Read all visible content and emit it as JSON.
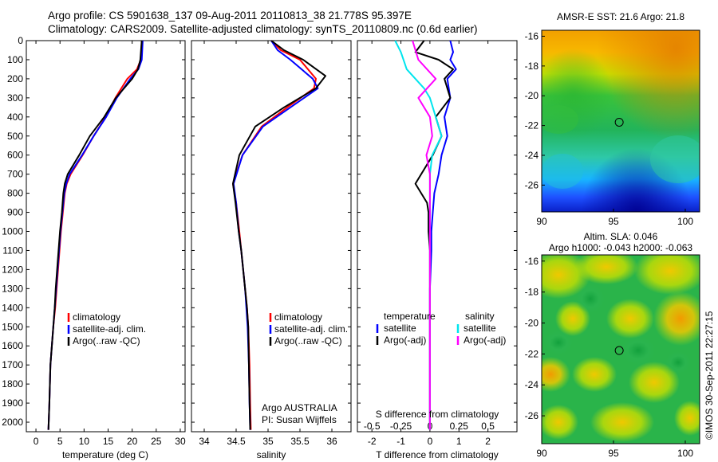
{
  "header": {
    "title_line1": "Argo profile: CS 5901638_137 09-Aug-2011 20110813_38 21.778S 95.397E",
    "title_line2": "Climatology: CARS2009. Satellite-adjusted climatology: synTS_20110809.nc (0.6d earlier)"
  },
  "footer": {
    "stamp": "©IMOS 30-Sep-2011 22:27:15"
  },
  "colors": {
    "climatology": "#ff0000",
    "satellite": "#0000ff",
    "argo": "#000000",
    "sal_satellite": "#00e5ee",
    "sal_argo": "#ff00ff",
    "marker": "#000000"
  },
  "chart_data": [
    {
      "type": "line",
      "id": "temperature",
      "xlabel": "temperature (deg C)",
      "xlim": [
        -2,
        31
      ],
      "ylim": [
        2050,
        0
      ],
      "xticks": [
        0,
        5,
        10,
        15,
        20,
        25,
        30
      ],
      "xtick_labels": [
        "0",
        "5",
        "10",
        "15",
        "20",
        "25",
        "30"
      ],
      "yticks": [
        0,
        100,
        200,
        300,
        400,
        500,
        600,
        700,
        800,
        900,
        1000,
        1100,
        1200,
        1300,
        1400,
        1500,
        1600,
        1700,
        1800,
        1900,
        2000
      ],
      "ytick_labels": [
        "0",
        "100",
        "200",
        "300",
        "400",
        "500",
        "600",
        "700",
        "800",
        "900",
        "1000",
        "1100",
        "1200",
        "1300",
        "1400",
        "1500",
        "1600",
        "1700",
        "1800",
        "1900",
        "2000"
      ],
      "legend": [
        "climatology",
        "satellite-adj. clim.",
        "Argo(..raw -QC)"
      ],
      "series": [
        {
          "name": "climatology",
          "color": "#ff0000",
          "x": [
            22.0,
            21.8,
            21.0,
            19.0,
            16.5,
            14.5,
            12.0,
            9.7,
            7.2,
            6.4,
            6.0,
            5.6,
            5.2,
            4.9,
            4.6,
            4.3,
            4.0,
            3.6,
            3.3,
            3.0,
            2.8,
            2.6
          ],
          "y": [
            0,
            100,
            150,
            200,
            300,
            400,
            500,
            600,
            700,
            750,
            800,
            900,
            1000,
            1100,
            1200,
            1300,
            1400,
            1500,
            1600,
            1700,
            1900,
            2040
          ]
        },
        {
          "name": "satellite-adj. clim.",
          "color": "#0000ff",
          "x": [
            22.2,
            22.0,
            21.3,
            19.6,
            16.8,
            14.6,
            12.0,
            9.6,
            7.0,
            6.3,
            5.9,
            5.5,
            5.1,
            4.8,
            4.5,
            4.2,
            3.9,
            3.6,
            3.3,
            3.0,
            2.8,
            2.6
          ],
          "y": [
            0,
            100,
            150,
            200,
            300,
            400,
            500,
            600,
            700,
            750,
            800,
            900,
            1000,
            1100,
            1200,
            1300,
            1400,
            1500,
            1600,
            1700,
            1900,
            2040
          ]
        },
        {
          "name": "Argo(..raw -QC)",
          "color": "#000000",
          "x": [
            22.0,
            21.7,
            21.2,
            20.0,
            16.6,
            14.2,
            11.2,
            9.0,
            6.6,
            6.0,
            5.7,
            5.4,
            5.0,
            4.7,
            4.4,
            4.1,
            3.9,
            3.6,
            3.3,
            3.0,
            2.8,
            2.6
          ],
          "y": [
            0,
            100,
            150,
            200,
            300,
            400,
            500,
            600,
            700,
            750,
            800,
            900,
            1000,
            1100,
            1200,
            1300,
            1400,
            1500,
            1600,
            1700,
            1900,
            2040
          ]
        }
      ]
    },
    {
      "type": "line",
      "id": "salinity",
      "xlabel": "salinity",
      "xlim": [
        33.8,
        36.3
      ],
      "ylim": [
        2050,
        0
      ],
      "xticks": [
        34,
        34.5,
        35,
        35.5,
        36
      ],
      "xtick_labels": [
        "34",
        "34.5",
        "35",
        "35.5",
        "36"
      ],
      "legend": [
        "climatology",
        "satellite-adj. clim.",
        "Argo(..raw -QC)"
      ],
      "annotation": [
        "Argo AUSTRALIA",
        "PI: Susan Wijffels"
      ],
      "series": [
        {
          "name": "climatology",
          "color": "#ff0000",
          "x": [
            35.05,
            35.2,
            35.5,
            35.75,
            35.72,
            35.3,
            34.9,
            34.6,
            34.45,
            34.5,
            34.55,
            34.58,
            34.61,
            34.64,
            34.67,
            34.69,
            34.71,
            34.72,
            34.73
          ],
          "y": [
            0,
            50,
            100,
            200,
            250,
            350,
            450,
            600,
            750,
            850,
            1000,
            1100,
            1200,
            1300,
            1400,
            1500,
            1700,
            1900,
            2040
          ]
        },
        {
          "name": "satellite-adj. clim.",
          "color": "#0000ff",
          "x": [
            35.05,
            35.15,
            35.35,
            35.7,
            35.78,
            35.35,
            34.92,
            34.6,
            34.46,
            34.5,
            34.54,
            34.58,
            34.61,
            34.64,
            34.66,
            34.68,
            34.7,
            34.71,
            34.72
          ],
          "y": [
            0,
            50,
            100,
            200,
            250,
            350,
            450,
            600,
            750,
            850,
            1000,
            1100,
            1200,
            1300,
            1400,
            1500,
            1700,
            1900,
            2040
          ]
        },
        {
          "name": "Argo(..raw -QC)",
          "color": "#000000",
          "x": [
            35.05,
            35.25,
            35.55,
            35.9,
            35.75,
            35.25,
            34.8,
            34.55,
            34.45,
            34.49,
            34.54,
            34.58,
            34.61,
            34.64,
            34.67,
            34.69,
            34.7,
            34.71,
            34.72
          ],
          "y": [
            0,
            50,
            100,
            185,
            250,
            350,
            450,
            600,
            750,
            850,
            1000,
            1100,
            1200,
            1300,
            1400,
            1500,
            1700,
            1900,
            2040
          ]
        }
      ]
    },
    {
      "type": "line",
      "id": "difference",
      "xlabel": "T difference from climatology",
      "xlabel_top": "S difference from climatology",
      "xlim": [
        -2.5,
        3
      ],
      "ylim": [
        2050,
        0
      ],
      "xticks": [
        -2,
        -1,
        0,
        1,
        2
      ],
      "xtick_labels": [
        "-2",
        "-1",
        "0",
        "1",
        "2"
      ],
      "xticks_top": [
        -0.5,
        -0.25,
        0,
        0.25,
        0.5
      ],
      "xtick_labels_top": [
        "-0.5",
        "-0.25",
        "0",
        "0.25",
        "0.5"
      ],
      "s_scale": 4,
      "legend_temperature": [
        "temperature",
        "satellite",
        "Argo(-adj)"
      ],
      "legend_salinity": [
        "salinity",
        "satellite",
        "Argo(-adj)"
      ],
      "series": [
        {
          "name": "satellite",
          "group": "temperature",
          "color": "#0000ff",
          "units": "T",
          "x": [
            0.7,
            0.8,
            0.7,
            0.9,
            0.6,
            0.7,
            0.5,
            0.6,
            0.4,
            0.3,
            0.15,
            0.1,
            0.05,
            0.05,
            0.0,
            0.0,
            0.0,
            0.0
          ],
          "y": [
            0,
            60,
            100,
            150,
            200,
            300,
            400,
            500,
            600,
            700,
            800,
            900,
            1000,
            1100,
            1300,
            1500,
            1800,
            2040
          ]
        },
        {
          "name": "Argo(-adj)",
          "group": "temperature",
          "color": "#000000",
          "units": "T",
          "x": [
            -0.2,
            -0.5,
            0.3,
            0.8,
            0.5,
            0.7,
            0.2,
            0.4,
            0.1,
            -0.5,
            -0.1,
            -0.05,
            -0.05,
            0.0,
            0.0,
            0.0,
            0.0,
            0.0
          ],
          "y": [
            0,
            60,
            100,
            150,
            200,
            300,
            400,
            500,
            600,
            750,
            850,
            900,
            1000,
            1100,
            1300,
            1500,
            1800,
            2040
          ]
        },
        {
          "name": "satellite",
          "group": "salinity",
          "color": "#00e5ee",
          "units": "S",
          "x": [
            -0.3,
            -0.25,
            -0.2,
            -0.05,
            0.0,
            0.05,
            0.1,
            0.02,
            0.0,
            0.0,
            0.0,
            0.0,
            0.0,
            0.0
          ],
          "y": [
            0,
            60,
            150,
            250,
            300,
            400,
            500,
            600,
            700,
            800,
            1000,
            1200,
            1600,
            2040
          ]
        },
        {
          "name": "Argo(-adj)",
          "group": "salinity",
          "color": "#ff00ff",
          "units": "S",
          "x": [
            -0.15,
            -0.1,
            0.05,
            -0.1,
            0.0,
            0.02,
            -0.03,
            0.0,
            0.0,
            0.0,
            0.0
          ],
          "y": [
            0,
            100,
            200,
            300,
            400,
            500,
            600,
            700,
            800,
            1000,
            2040
          ]
        }
      ]
    },
    {
      "type": "heatmap",
      "id": "sst_map",
      "title": "AMSR-E SST: 21.6  Argo: 21.8",
      "xlim": [
        90,
        101
      ],
      "ylim": [
        -27.8,
        -15.6
      ],
      "xticks": [
        90,
        95,
        100
      ],
      "xtick_labels": [
        "90",
        "95",
        "100"
      ],
      "yticks": [
        -16,
        -18,
        -20,
        -22,
        -24,
        -26
      ],
      "ytick_labels": [
        "-16",
        "-18",
        "-20",
        "-22",
        "-24",
        "-26"
      ],
      "marker": {
        "lon": 95.397,
        "lat": -21.778
      }
    },
    {
      "type": "heatmap",
      "id": "sla_map",
      "title": "Altim. SLA: 0.046",
      "subtitle": "Argo h1000: -0.043  h2000: -0.063",
      "xlim": [
        90,
        101
      ],
      "ylim": [
        -27.8,
        -15.6
      ],
      "xticks": [
        90,
        95,
        100
      ],
      "xtick_labels": [
        "90",
        "95",
        "100"
      ],
      "yticks": [
        -16,
        -18,
        -20,
        -22,
        -24,
        -26
      ],
      "ytick_labels": [
        "-16",
        "-18",
        "-20",
        "-22",
        "-24",
        "-26"
      ],
      "marker": {
        "lon": 95.397,
        "lat": -21.778
      }
    }
  ]
}
